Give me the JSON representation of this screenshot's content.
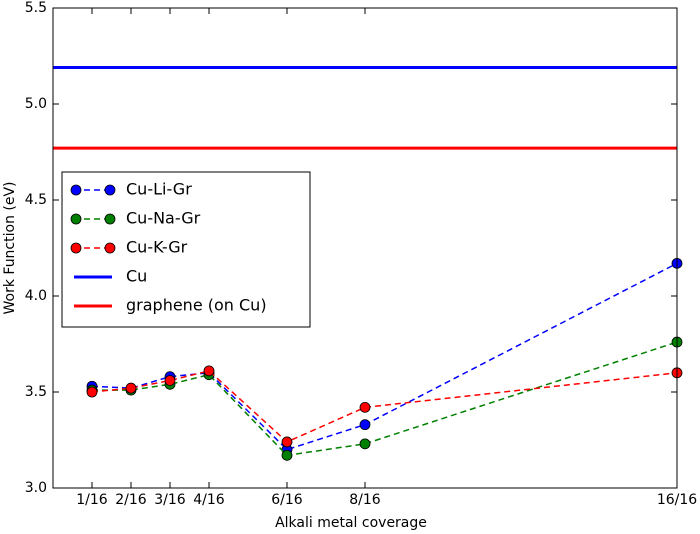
{
  "chart_data": {
    "type": "line",
    "x_label": "Alkali metal coverage",
    "y_label": "Work Function (eV)",
    "x": [
      1,
      2,
      3,
      4,
      6,
      8,
      16
    ],
    "series": [
      {
        "name": "Cu-Li-Gr",
        "color": "#0000ff",
        "values": [
          3.53,
          3.52,
          3.58,
          3.6,
          3.2,
          3.33,
          4.17
        ]
      },
      {
        "name": "Cu-Na-Gr",
        "color": "#008000",
        "values": [
          3.51,
          3.51,
          3.54,
          3.59,
          3.17,
          3.23,
          3.76
        ]
      },
      {
        "name": "Cu-K-Gr",
        "color": "#ff0000",
        "values": [
          3.5,
          3.52,
          3.56,
          3.61,
          3.24,
          3.42,
          3.6
        ]
      }
    ],
    "hlines": [
      {
        "name": "Cu",
        "color": "#0000ff",
        "value": 5.19
      },
      {
        "name": "graphene (on Cu)",
        "color": "#ff0000",
        "value": 4.77
      }
    ],
    "xlim": [
      0,
      16
    ],
    "xticks": [
      {
        "value": 1,
        "label": "1/16"
      },
      {
        "value": 2,
        "label": "2/16"
      },
      {
        "value": 3,
        "label": "3/16"
      },
      {
        "value": 4,
        "label": "4/16"
      },
      {
        "value": 6,
        "label": "6/16"
      },
      {
        "value": 8,
        "label": "8/16"
      },
      {
        "value": 16,
        "label": "16/16"
      }
    ],
    "ylim": [
      3.0,
      5.5
    ],
    "yticks": [
      {
        "value": 3.0,
        "label": "3.0"
      },
      3.5,
      {
        "value": 4.0,
        "label": "4.0"
      },
      4.5,
      {
        "value": 5.0,
        "label": "5.0"
      },
      5.5
    ],
    "legend": "center left"
  }
}
